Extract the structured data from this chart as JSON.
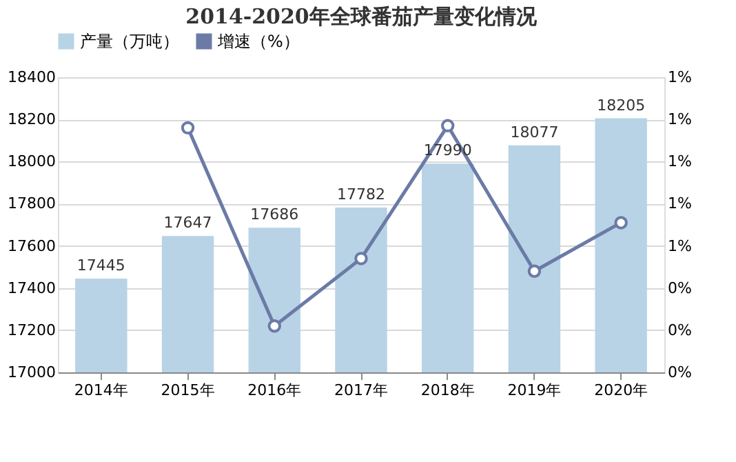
{
  "chart_data": {
    "type": "bar",
    "title": "2014-2020年全球番茄产量变化情况",
    "categories": [
      "2014年",
      "2015年",
      "2016年",
      "2017年",
      "2018年",
      "2019年",
      "2020年"
    ],
    "series": [
      {
        "name": "产量（万吨）",
        "color": "#b8d3e6",
        "values": [
          17445,
          17647,
          17686,
          17782,
          17990,
          18077,
          18205
        ],
        "value_labels": [
          "17445",
          "17647",
          "17686",
          "17782",
          "17990",
          "18077",
          "18205"
        ]
      },
      {
        "name": "增速（%）",
        "type": "line",
        "axis": "y2",
        "color": "#6b7ba6",
        "marker": "circle",
        "values": [
          null,
          1.16,
          0.22,
          0.54,
          1.17,
          0.48,
          0.71
        ]
      }
    ],
    "ylim": [
      17000,
      18400
    ],
    "yticks": [
      17000,
      17200,
      17400,
      17600,
      17800,
      18000,
      18200,
      18400
    ],
    "y2lim": [
      0,
      1.4
    ],
    "y2ticks": [
      {
        "value": 0,
        "label": "0%"
      },
      {
        "value": 0.2,
        "label": "0%"
      },
      {
        "value": 0.4,
        "label": "0%"
      },
      {
        "value": 0.6,
        "label": "1%"
      },
      {
        "value": 0.8,
        "label": "1%"
      },
      {
        "value": 1.0,
        "label": "1%"
      },
      {
        "value": 1.2,
        "label": "1%"
      },
      {
        "value": 1.4,
        "label": "1%"
      }
    ],
    "grid": "y",
    "legend": "top"
  }
}
